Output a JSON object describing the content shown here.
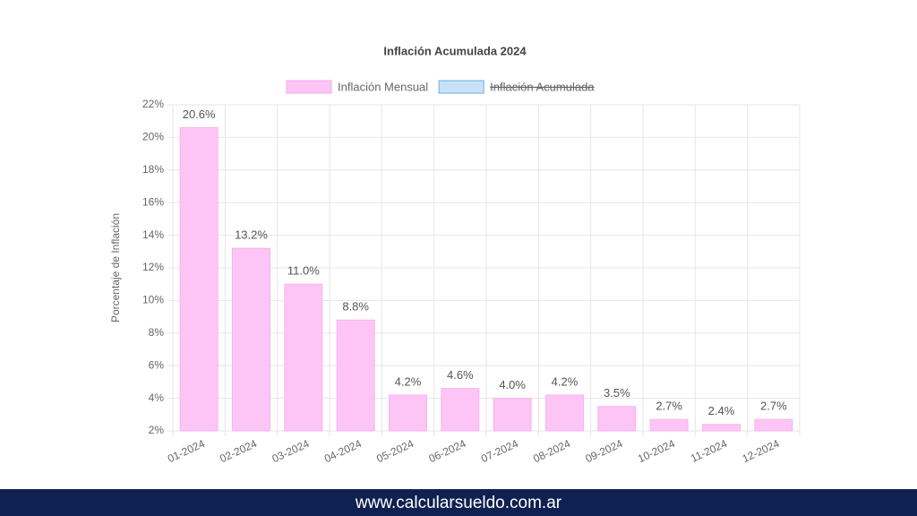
{
  "chart_data": {
    "type": "bar",
    "title": "Inflación Acumulada 2024",
    "y_label": "Porcentaje de Inflación",
    "categories": [
      "01-2024",
      "02-2024",
      "03-2024",
      "04-2024",
      "05-2024",
      "06-2024",
      "07-2024",
      "08-2024",
      "09-2024",
      "10-2024",
      "11-2024",
      "12-2024"
    ],
    "series": [
      {
        "name": "Inflación Mensual",
        "color": "#fcc5f5",
        "values": [
          20.6,
          13.2,
          11.0,
          8.8,
          4.2,
          4.6,
          4.0,
          4.2,
          3.5,
          2.7,
          2.4,
          2.7
        ],
        "value_labels": [
          "20.6%",
          "13.2%",
          "11.0%",
          "8.8%",
          "4.2%",
          "4.6%",
          "4.0%",
          "4.2%",
          "3.5%",
          "2.7%",
          "2.4%",
          "2.7%"
        ]
      }
    ],
    "legend": [
      {
        "name": "Inflación Mensual",
        "color": "#fcc5f5",
        "hidden": false
      },
      {
        "name": "Inflación Acumulada",
        "color": "#c7e2f7",
        "hidden": true
      }
    ],
    "ylim": [
      2,
      22
    ],
    "yticks": [
      {
        "value": 2,
        "label": "2%"
      },
      {
        "value": 4,
        "label": "4%"
      },
      {
        "value": 6,
        "label": "6%"
      },
      {
        "value": 8,
        "label": "8%"
      },
      {
        "value": 10,
        "label": "10%"
      },
      {
        "value": 12,
        "label": "12%"
      },
      {
        "value": 14,
        "label": "14%"
      },
      {
        "value": 16,
        "label": "16%"
      },
      {
        "value": 18,
        "label": "18%"
      },
      {
        "value": 20,
        "label": "20%"
      },
      {
        "value": 22,
        "label": "22%"
      }
    ],
    "grid": true
  },
  "footer": "www.calcularsueldo.com.ar"
}
